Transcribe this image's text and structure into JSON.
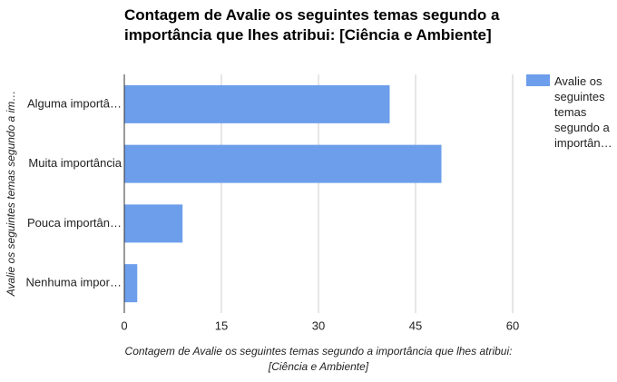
{
  "chart_data": {
    "type": "bar",
    "orientation": "horizontal",
    "title": "Contagem de Avalie os seguintes temas segundo a importância que lhes atribui: [Ciência e Ambiente]",
    "xlabel": "Contagem de Avalie os seguintes temas segundo a importância que lhes atribui: [Ciência e Ambiente]",
    "ylabel": "Avalie os seguintes temas segundo a im…",
    "categories": [
      "Alguma importâ…",
      "Muita importância",
      "Pouca importân…",
      "Nenhuma impor…"
    ],
    "series": [
      {
        "name": "Avalie os seguintes temas segundo a importân…",
        "color": "#6d9eeb",
        "values": [
          41,
          49,
          9,
          2
        ]
      }
    ],
    "xlim": [
      0,
      60
    ],
    "xticks": [
      0,
      15,
      30,
      45,
      60
    ],
    "grid": true,
    "legend": "right"
  }
}
